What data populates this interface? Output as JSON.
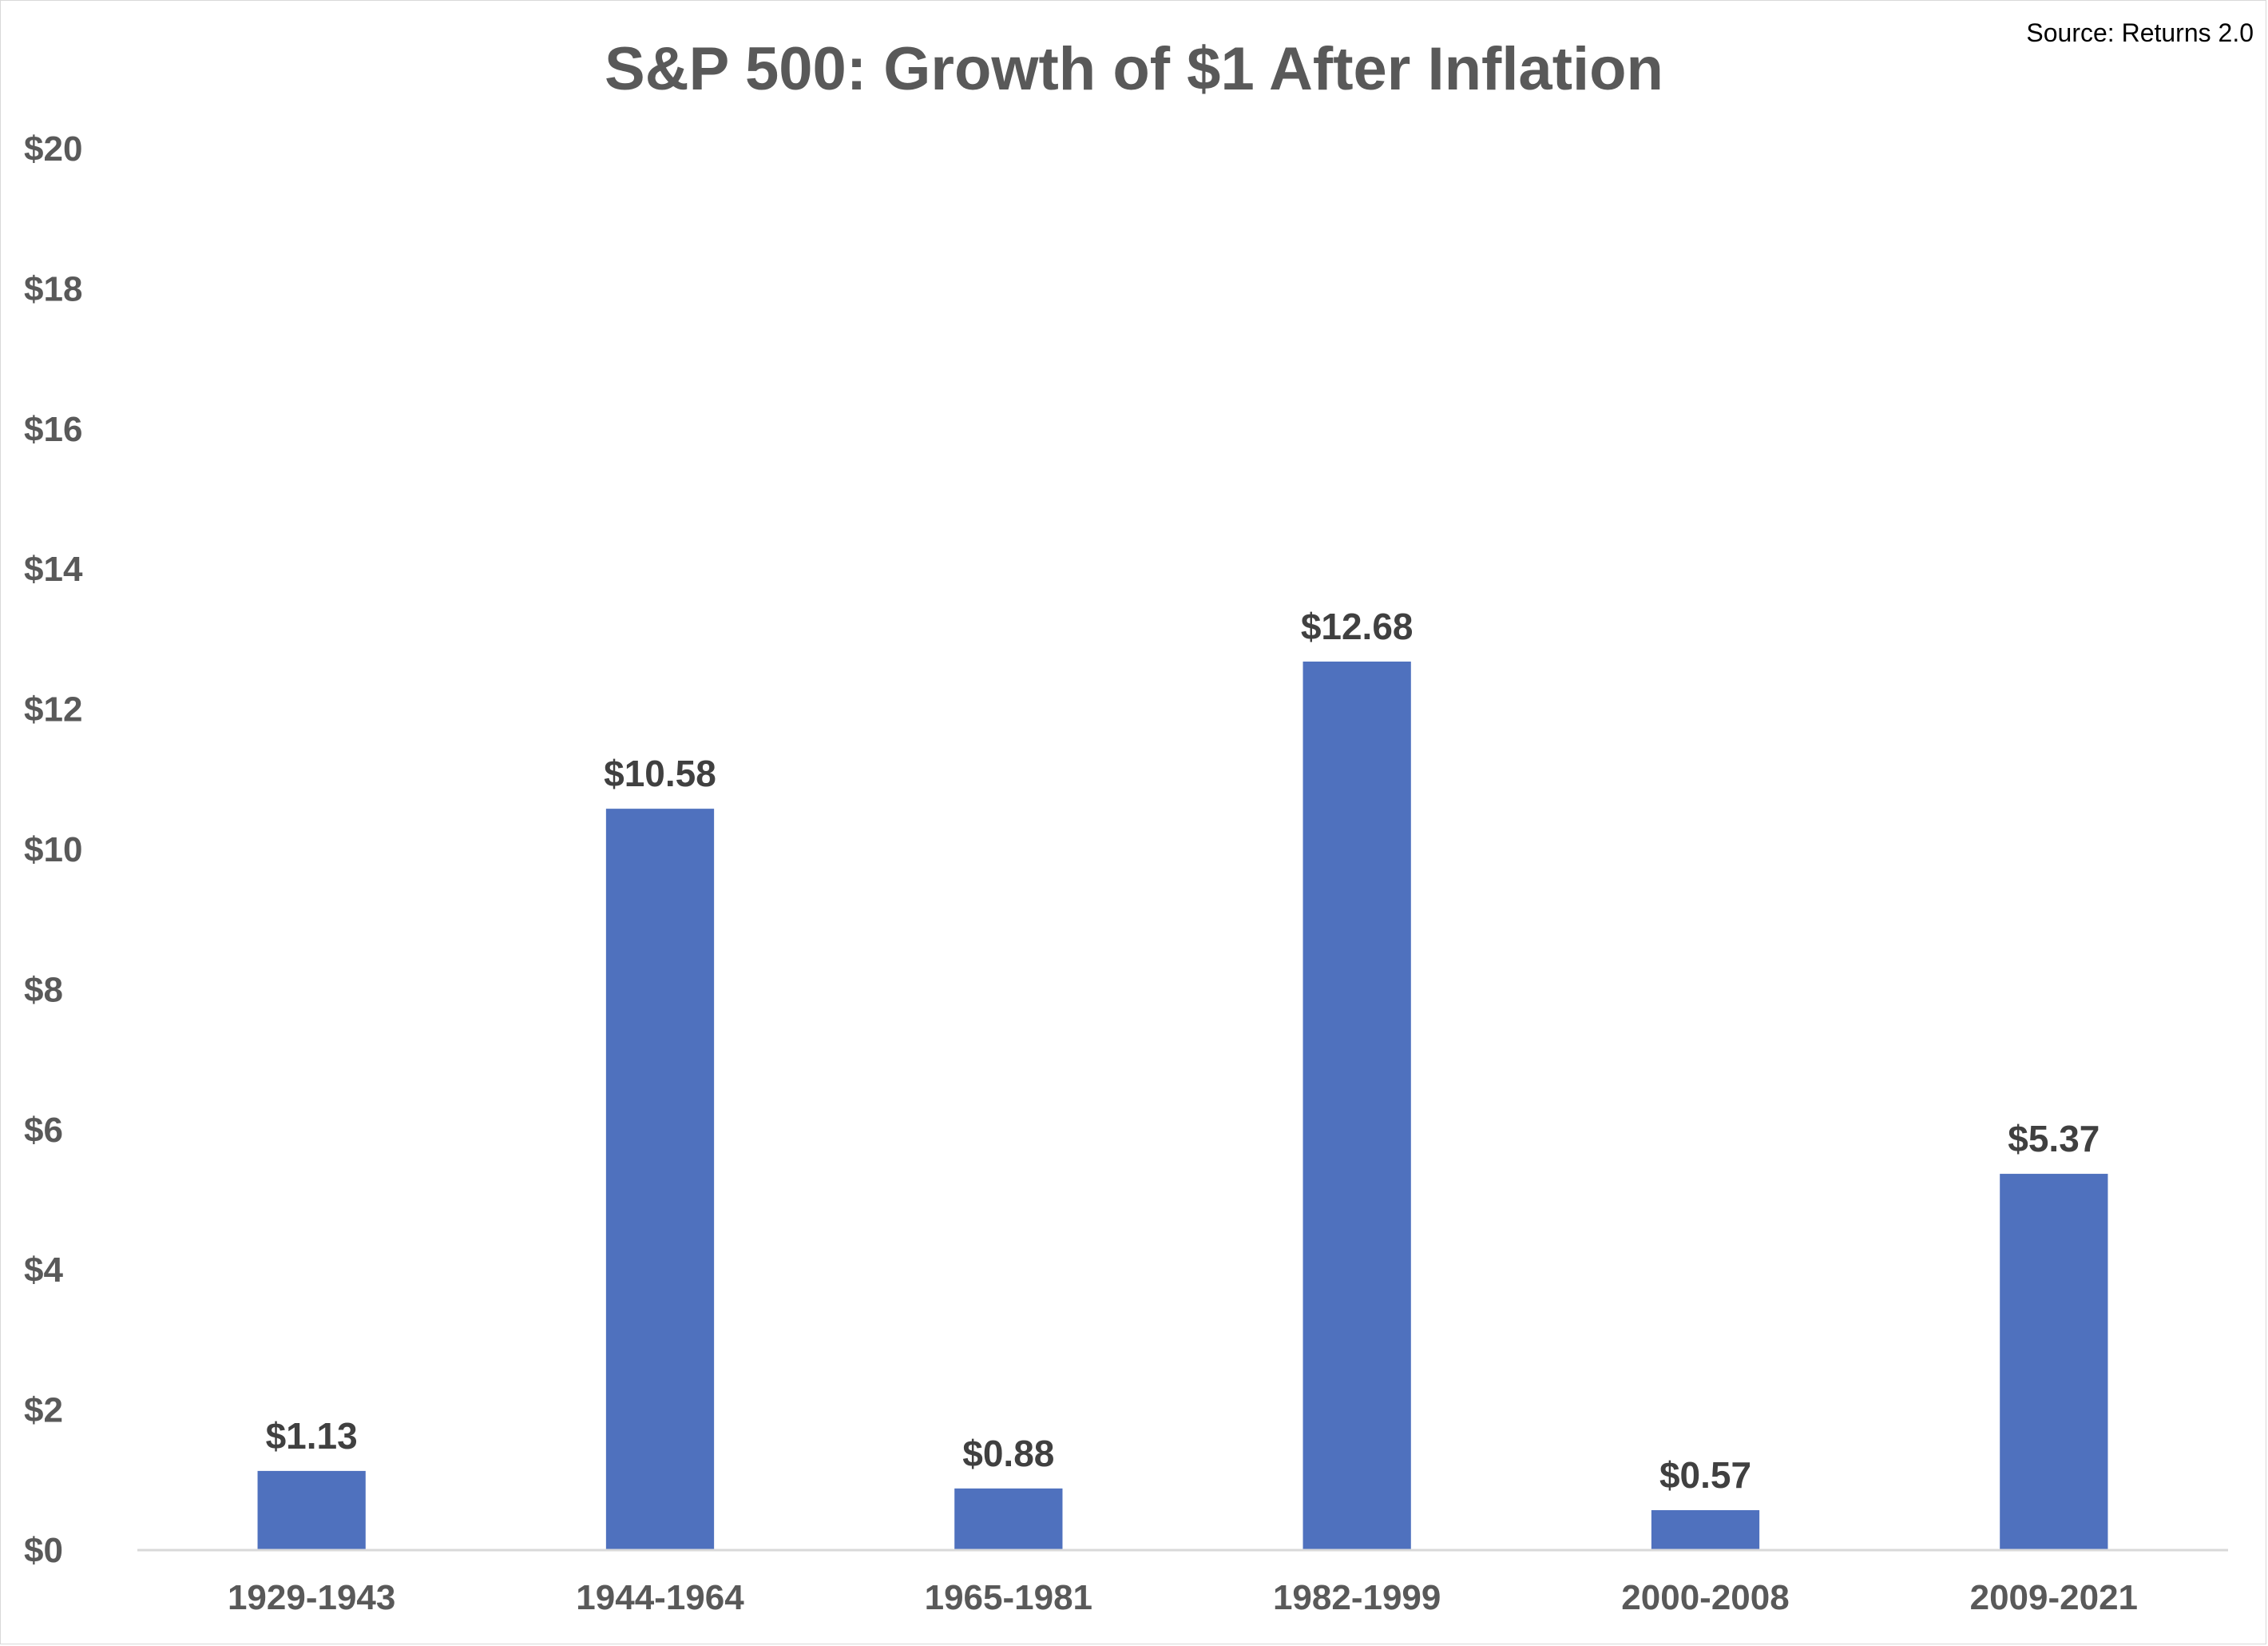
{
  "chart_data": {
    "type": "bar",
    "title": "S&P 500: Growth of $1 After Inflation",
    "source": "Source: Returns 2.0",
    "categories": [
      "1929-1943",
      "1944-1964",
      "1965-1981",
      "1982-1999",
      "2000-2008",
      "2009-2021"
    ],
    "values": [
      1.13,
      10.58,
      0.88,
      12.68,
      0.57,
      5.37
    ],
    "data_labels": [
      "$1.13",
      "$10.58",
      "$0.88",
      "$12.68",
      "$0.57",
      "$5.37"
    ],
    "yticks": [
      0,
      2,
      4,
      6,
      8,
      10,
      12,
      14,
      16,
      18,
      20
    ],
    "ytick_labels": [
      "$0",
      "$2",
      "$4",
      "$6",
      "$8",
      "$10",
      "$12",
      "$14",
      "$16",
      "$18",
      "$20"
    ],
    "ylim": [
      0,
      20
    ],
    "xlabel": "",
    "ylabel": "",
    "grid": false,
    "legend": "none",
    "bar_color": "#4f71be"
  }
}
